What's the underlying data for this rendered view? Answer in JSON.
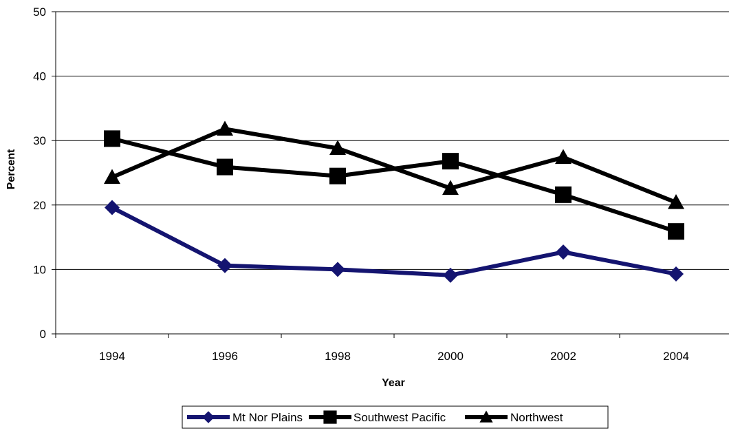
{
  "chart_data": {
    "type": "line",
    "xlabel": "Year",
    "ylabel": "Percent",
    "x": [
      "1994",
      "1996",
      "1998",
      "2000",
      "2002",
      "2004"
    ],
    "ylim": [
      0,
      50
    ],
    "yticks": [
      0,
      10,
      20,
      30,
      40,
      50
    ],
    "grid": "horizontal",
    "legend": "bottom",
    "series": [
      {
        "name": "Mt Nor Plains",
        "values": [
          19.6,
          10.6,
          10.0,
          9.1,
          12.7,
          9.3
        ],
        "color": "#141470",
        "marker": "diamond"
      },
      {
        "name": "Southwest Pacific",
        "values": [
          30.3,
          25.9,
          24.5,
          26.8,
          21.6,
          15.9
        ],
        "color": "#000000",
        "marker": "square"
      },
      {
        "name": "Northwest",
        "values": [
          24.3,
          31.8,
          28.8,
          22.6,
          27.4,
          20.4
        ],
        "color": "#000000",
        "marker": "triangle"
      }
    ]
  }
}
